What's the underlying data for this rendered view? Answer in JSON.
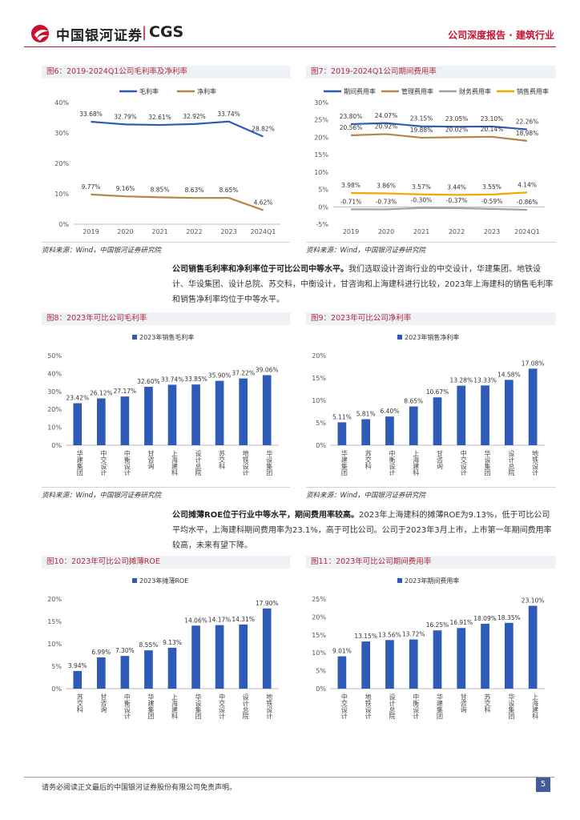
{
  "header": {
    "brand_cn": "中国银河证券",
    "brand_sep": "|",
    "brand_en": "CGS",
    "report_type": "公司深度报告 · 建筑行业"
  },
  "figures": {
    "fig6": {
      "title": "图6：2019-2024Q1公司毛利率及净利率",
      "source": "资料来源：Wind，中国银河证券研究院",
      "chart_data": {
        "type": "line",
        "x": [
          "2019",
          "2020",
          "2021",
          "2022",
          "2023",
          "2024Q1"
        ],
        "ylim": [
          0,
          40
        ],
        "yticks": [
          "0%",
          "10%",
          "20%",
          "30%",
          "40%"
        ],
        "series": [
          {
            "name": "毛利率",
            "color": "#2e5ab8",
            "values": [
              33.68,
              32.79,
              32.61,
              32.92,
              33.74,
              28.82
            ],
            "labels": [
              "33.68%",
              "32.79%",
              "32.61%",
              "32.92%",
              "33.74%",
              "28.82%"
            ]
          },
          {
            "name": "净利率",
            "color": "#b5854a",
            "values": [
              9.77,
              9.16,
              8.85,
              8.63,
              8.65,
              4.62
            ],
            "labels": [
              "9.77%",
              "9.16%",
              "8.85%",
              "8.63%",
              "8.65%",
              "4.62%"
            ]
          }
        ]
      }
    },
    "fig7": {
      "title": "图7：2019-2024Q1公司期间费用率",
      "source": "资料来源：Wind，中国银河证券研究院",
      "chart_data": {
        "type": "line",
        "x": [
          "2019",
          "2020",
          "2021",
          "2022",
          "2023",
          "2024Q1"
        ],
        "ylim": [
          -5,
          30
        ],
        "yticks": [
          "-5%",
          "0%",
          "5%",
          "10%",
          "15%",
          "20%",
          "25%",
          "30%"
        ],
        "series": [
          {
            "name": "期间费用率",
            "color": "#2e5ab8",
            "values": [
              23.8,
              24.07,
              23.15,
              23.05,
              23.1,
              22.26
            ],
            "labels": [
              "23.80%",
              "24.07%",
              "23.15%",
              "23.05%",
              "23.10%",
              "22.26%"
            ]
          },
          {
            "name": "管理费用率",
            "color": "#b5854a",
            "values": [
              20.56,
              20.92,
              19.88,
              20.02,
              20.14,
              18.98
            ],
            "labels": [
              "20.56%",
              "20.92%",
              "19.88%",
              "20.02%",
              "20.14%",
              "18.98%"
            ]
          },
          {
            "name": "财务费用率",
            "color": "#9aa3ad",
            "values": [
              -0.71,
              -0.73,
              -0.3,
              -0.37,
              -0.59,
              -0.86
            ],
            "labels": [
              "-0.71%",
              "-0.73%",
              "-0.30%",
              "-0.37%",
              "-0.59%",
              "-0.86%"
            ]
          },
          {
            "name": "销售费用率",
            "color": "#f2a900",
            "values": [
              3.98,
              3.86,
              3.57,
              3.44,
              3.55,
              4.14
            ],
            "labels": [
              "3.98%",
              "3.86%",
              "3.57%",
              "3.44%",
              "3.55%",
              "4.14%"
            ]
          }
        ]
      }
    },
    "fig8": {
      "title": "图8：2023年可比公司毛利率",
      "source": "资料来源：Wind，中国银河证券研究院",
      "chart_data": {
        "type": "bar",
        "legend": "2023年销售毛利率",
        "color": "#2e5ab8",
        "categories": [
          "华建集团",
          "中交设计",
          "中衡设计",
          "甘咨询",
          "上海建科",
          "设计总院",
          "苏交科",
          "地铁设计",
          "华设集团"
        ],
        "values": [
          23.42,
          26.12,
          27.17,
          32.6,
          33.74,
          33.85,
          35.9,
          37.22,
          39.06
        ],
        "labels": [
          "23.42%",
          "26.12%",
          "27.17%",
          "32.60%",
          "33.74%",
          "33.85%",
          "35.90%",
          "37.22%",
          "39.06%"
        ],
        "ylim": [
          0,
          50
        ],
        "yticks": [
          "0%",
          "10%",
          "20%",
          "30%",
          "40%",
          "50%"
        ]
      }
    },
    "fig9": {
      "title": "图9：2023年可比公司净利率",
      "source": "资料来源：Wind，中国银河证券研究院",
      "chart_data": {
        "type": "bar",
        "legend": "2023年销售净利率",
        "color": "#2e5ab8",
        "categories": [
          "华建集团",
          "苏交科",
          "中衡设计",
          "上海建科",
          "甘咨询",
          "中交设计",
          "华设集团",
          "设计总院",
          "地铁设计"
        ],
        "values": [
          5.11,
          5.81,
          6.4,
          8.65,
          10.67,
          13.28,
          13.33,
          14.58,
          17.08
        ],
        "labels": [
          "5.11%",
          "5.81%",
          "6.40%",
          "8.65%",
          "10.67%",
          "13.28%",
          "13.33%",
          "14.58%",
          "17.08%"
        ],
        "ylim": [
          0,
          20
        ],
        "yticks": [
          "0%",
          "5%",
          "10%",
          "15%",
          "20%"
        ]
      }
    },
    "fig10": {
      "title": "图10：2023年可比公司摊薄ROE",
      "source": "",
      "chart_data": {
        "type": "bar",
        "legend": "2023年摊薄ROE",
        "color": "#2e5ab8",
        "categories": [
          "苏交科",
          "甘咨询",
          "中衡设计",
          "华建集团",
          "上海建科",
          "华设集团",
          "中交设计",
          "设计总院",
          "地铁设计"
        ],
        "values": [
          3.94,
          6.99,
          7.3,
          8.55,
          9.13,
          14.06,
          14.17,
          14.31,
          17.9
        ],
        "labels": [
          "3.94%",
          "6.99%",
          "7.30%",
          "8.55%",
          "9.13%",
          "14.06%",
          "14.17%",
          "14.31%",
          "17.90%"
        ],
        "ylim": [
          0,
          20
        ],
        "yticks": [
          "0%",
          "5%",
          "10%",
          "15%",
          "20%"
        ]
      }
    },
    "fig11": {
      "title": "图11：2023年可比公司期间费用率",
      "source": "",
      "chart_data": {
        "type": "bar",
        "legend": "2023年期间费用率",
        "color": "#2e5ab8",
        "categories": [
          "中交设计",
          "地铁设计",
          "设计总院",
          "中衡设计",
          "华建集团",
          "甘咨询",
          "苏交科",
          "华设集团",
          "上海建科"
        ],
        "values": [
          9.01,
          13.15,
          13.56,
          13.72,
          16.25,
          16.91,
          18.09,
          18.35,
          23.1
        ],
        "labels": [
          "9.01%",
          "13.15%",
          "13.56%",
          "13.72%",
          "16.25%",
          "16.91%",
          "18.09%",
          "18.35%",
          "23.10%"
        ],
        "ylim": [
          0,
          25
        ],
        "yticks": [
          "0%",
          "5%",
          "10%",
          "15%",
          "20%",
          "25%"
        ]
      }
    }
  },
  "paragraphs": {
    "p1_bold": "公司销售毛利率和净利率位于可比公司中等水平。",
    "p1_rest": "我们选取设计咨询行业的中交设计，华建集团、地铁设计、华设集团、设计总院、苏交科，中衡设计，甘咨询和上海建科进行比较，2023年上海建科的销售毛利率和销售净利率均位于中等水平。",
    "p2_bold": "公司摊薄ROE位于行业中等水平，期间费用率较高。",
    "p2_rest": "2023年上海建科的摊薄ROE为9.13%，低于可比公司平均水平，上海建科期间费用率为23.1%，高于可比公司。公司于2023年3月上市，上市第一年期间费用率较高，未来有望下降。"
  },
  "footer": {
    "disclaimer": "请务必阅读正文最后的中国银河证券股份有限公司免责声明。",
    "page": "5"
  }
}
